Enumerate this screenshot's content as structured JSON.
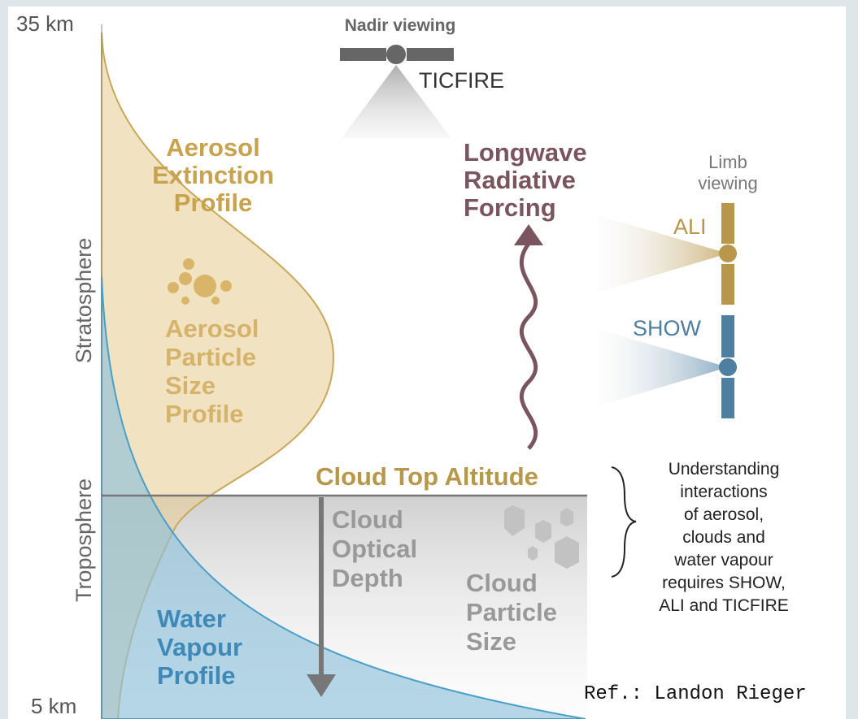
{
  "axis": {
    "top": "35 km",
    "bottom": "5 km",
    "upper_layer": "Stratosphere",
    "lower_layer": "Troposphere"
  },
  "nadir": {
    "heading": "Nadir viewing",
    "instrument": "TICFIRE"
  },
  "aerosol_extinction": [
    "Aerosol",
    "Extinction",
    "Profile"
  ],
  "longwave": [
    "Longwave",
    "Radiative",
    "Forcing"
  ],
  "limb": {
    "heading": [
      "Limb",
      "viewing"
    ],
    "instruments": [
      "ALI",
      "SHOW"
    ]
  },
  "aerosol_particle": [
    "Aerosol",
    "Particle",
    "Size",
    "Profile"
  ],
  "cloud_top": "Cloud Top Altitude",
  "cloud_optical": [
    "Cloud",
    "Optical",
    "Depth"
  ],
  "cloud_particle": [
    "Cloud",
    "Particle",
    "Size"
  ],
  "note": [
    "Understanding",
    "interactions",
    "of aerosol,",
    "clouds and",
    "water vapour",
    "requires SHOW,",
    "ALI and TICFIRE"
  ],
  "water_vapour": [
    "Water",
    "Vapour",
    "Profile"
  ],
  "reference": "Ref.: Landon Rieger"
}
